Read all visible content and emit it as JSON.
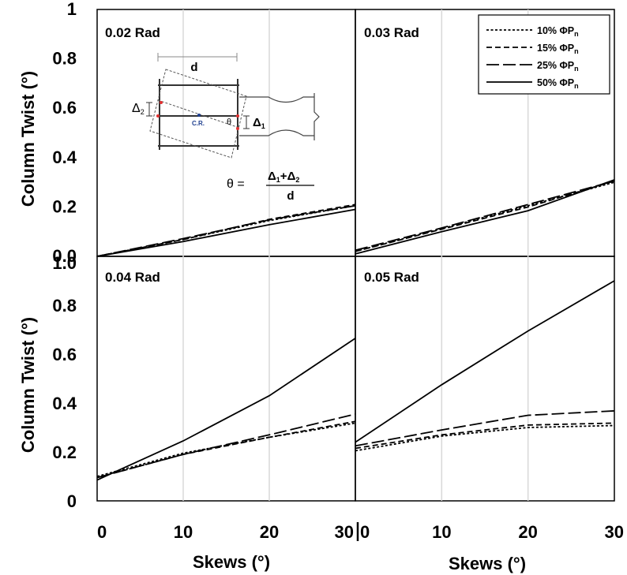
{
  "chart_data": {
    "type": "line",
    "ylabel": "Column Twist (°)",
    "xlabel": "Skews (°)",
    "xlim": [
      0,
      30
    ],
    "x_ticks": [
      "0",
      "10",
      "20",
      "30"
    ],
    "x_ticks_right": [
      "0",
      "10",
      "20",
      "30"
    ],
    "y_ticks_top": [
      "0.0",
      "0.2",
      "0.4",
      "0.6",
      "0.8",
      "1"
    ],
    "y_ticks_bottom": [
      "0",
      "0.2",
      "0.4",
      "0.6",
      "0.8",
      "1.0"
    ],
    "legend": [
      {
        "base": "10% ΦP",
        "sub": "n",
        "style": "dot"
      },
      {
        "base": "15% ΦP",
        "sub": "n",
        "style": "dash"
      },
      {
        "base": "25% ΦP",
        "sub": "n",
        "style": "longdash"
      },
      {
        "base": "50% ΦP",
        "sub": "n",
        "style": "solid"
      }
    ],
    "x": [
      0,
      10,
      20,
      30
    ],
    "panels": [
      {
        "title": "0.02 Rad",
        "ylim": [
          0,
          1
        ],
        "series": [
          {
            "values": [
              0.0,
              0.068,
              0.145,
              0.205
            ]
          },
          {
            "values": [
              0.0,
              0.068,
              0.15,
              0.21
            ]
          },
          {
            "values": [
              0.0,
              0.072,
              0.148,
              0.205
            ]
          },
          {
            "values": [
              0.0,
              0.06,
              0.128,
              0.19
            ]
          }
        ]
      },
      {
        "title": "0.03 Rad",
        "ylim": [
          0,
          1
        ],
        "series": [
          {
            "values": [
              0.02,
              0.112,
              0.205,
              0.3
            ]
          },
          {
            "values": [
              0.02,
              0.11,
              0.2,
              0.305
            ]
          },
          {
            "values": [
              0.025,
              0.115,
              0.21,
              0.305
            ]
          },
          {
            "values": [
              0.01,
              0.1,
              0.185,
              0.31
            ]
          }
        ]
      },
      {
        "title": "0.04 Rad",
        "ylim": [
          0,
          1
        ],
        "series": [
          {
            "values": [
              0.1,
              0.195,
              0.26,
              0.318
            ]
          },
          {
            "values": [
              0.095,
              0.19,
              0.26,
              0.325
            ]
          },
          {
            "values": [
              0.095,
              0.19,
              0.27,
              0.355
            ]
          },
          {
            "values": [
              0.085,
              0.245,
              0.43,
              0.665
            ]
          }
        ]
      },
      {
        "title": "0.05 Rad",
        "ylim": [
          0,
          1
        ],
        "series": [
          {
            "values": [
              0.205,
              0.265,
              0.3,
              0.308
            ]
          },
          {
            "values": [
              0.215,
              0.27,
              0.31,
              0.318
            ]
          },
          {
            "values": [
              0.225,
              0.29,
              0.35,
              0.368
            ]
          },
          {
            "values": [
              0.24,
              0.475,
              0.695,
              0.9
            ]
          }
        ]
      }
    ],
    "inset": {
      "d_label": "d",
      "cr_label": "C.R.",
      "theta_label": "θ",
      "delta1_base": "Δ",
      "delta1_sub": "1",
      "delta2_base": "Δ",
      "delta2_sub": "2",
      "eq_lhs": "θ =",
      "eq_num_a": "Δ",
      "eq_num_a_sub": "1",
      "eq_plus": "+",
      "eq_num_b": "Δ",
      "eq_num_b_sub": "2",
      "eq_den": "d",
      "accent_color": "#e03030",
      "cr_color": "#1f3f8f"
    }
  }
}
